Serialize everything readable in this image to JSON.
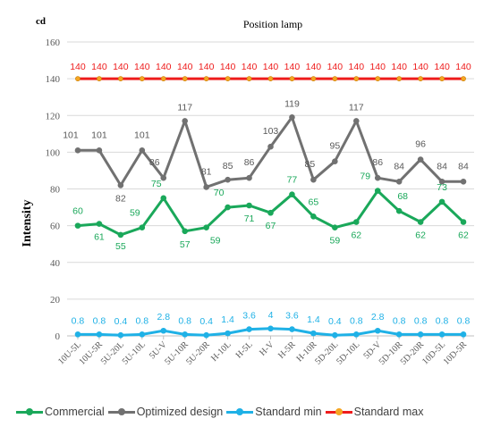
{
  "chart_data": {
    "type": "line",
    "title": "Position lamp",
    "unit_label": "cd",
    "ylabel": "Intensity",
    "xlabel": "",
    "ylim": [
      0,
      160
    ],
    "yticks": [
      0,
      20,
      40,
      60,
      80,
      100,
      120,
      140,
      160
    ],
    "grid": true,
    "legend_position": "bottom",
    "categories": [
      "10U-5L",
      "10U-5R",
      "5U-20L",
      "5U-10L",
      "5U-V",
      "5U-10R",
      "5U-20R",
      "H-10L",
      "H-5L",
      "H-V",
      "H-5R",
      "H-10R",
      "5D-20L",
      "5D-10L",
      "5D-V",
      "5D-10R",
      "5D-20R",
      "10D-5L",
      "10D-5R"
    ],
    "series": [
      {
        "name": "Commercial",
        "color": "#1aa85a",
        "values": [
          60,
          61,
          55,
          59,
          75,
          57,
          59,
          70,
          71,
          67,
          77,
          65,
          59,
          62,
          79,
          68,
          62,
          73,
          62
        ]
      },
      {
        "name": "Optimized design",
        "color": "#717171",
        "values": [
          101,
          101,
          82,
          101,
          86,
          117,
          81,
          85,
          86,
          103,
          119,
          85,
          95,
          117,
          86,
          84,
          96,
          84,
          84
        ]
      },
      {
        "name": "Standard min",
        "color": "#1fb1e6",
        "values": [
          0.8,
          0.8,
          0.4,
          0.8,
          2.8,
          0.8,
          0.4,
          1.4,
          3.6,
          4,
          3.6,
          1.4,
          0.4,
          0.8,
          2.8,
          0.8,
          0.8,
          0.8,
          0.8
        ]
      },
      {
        "name": "Standard max",
        "color": "#ee1c1c",
        "values": [
          140,
          140,
          140,
          140,
          140,
          140,
          140,
          140,
          140,
          140,
          140,
          140,
          140,
          140,
          140,
          140,
          140,
          140,
          140
        ]
      }
    ]
  }
}
